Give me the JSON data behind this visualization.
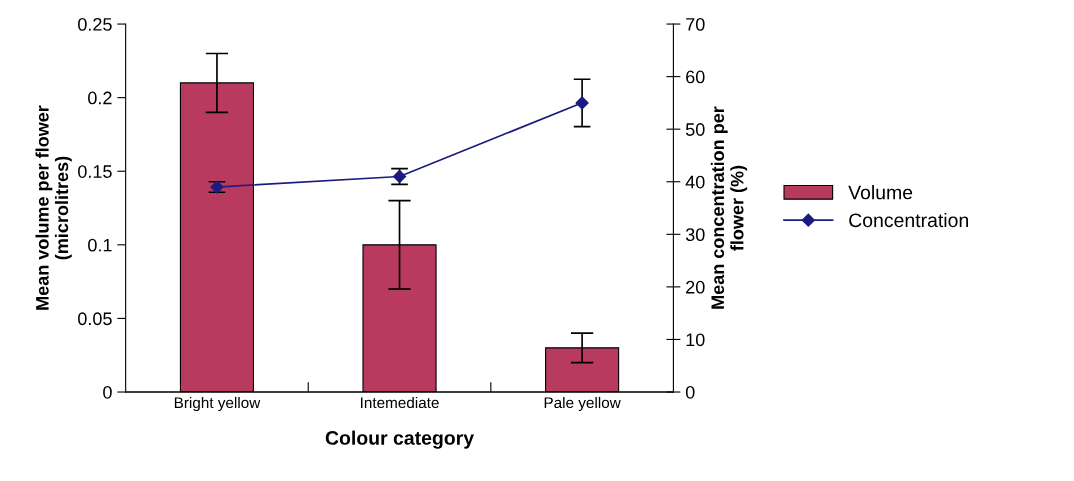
{
  "chart_data": {
    "type": "bar",
    "xlabel": "Colour category",
    "ylabel": "Mean volume per flower\n(microlitres)",
    "y2label": "Mean concentration per\nflower (%)",
    "categories": [
      "Bright yellow",
      "Intemediate",
      "Pale yellow"
    ],
    "series": [
      {
        "name": "Volume",
        "color": "#b83a5e",
        "values": [
          0.21,
          0.1,
          0.03
        ],
        "errors": [
          0.02,
          0.03,
          0.01
        ]
      },
      {
        "name": "Concentration",
        "type": "line",
        "axis": "y2",
        "color": "#1c1c80",
        "values": [
          39,
          41,
          55
        ],
        "errors": [
          1,
          1.5,
          4.5
        ],
        "marker": "diamond"
      }
    ],
    "ylim": [
      0,
      0.25
    ],
    "yticks": [
      0,
      0.05,
      0.1,
      0.15,
      0.2,
      0.25
    ],
    "y2lim": [
      0,
      70
    ],
    "y2ticks": [
      0,
      10,
      20,
      30,
      40,
      50,
      60,
      70
    ],
    "grid": false,
    "legend": "right"
  }
}
